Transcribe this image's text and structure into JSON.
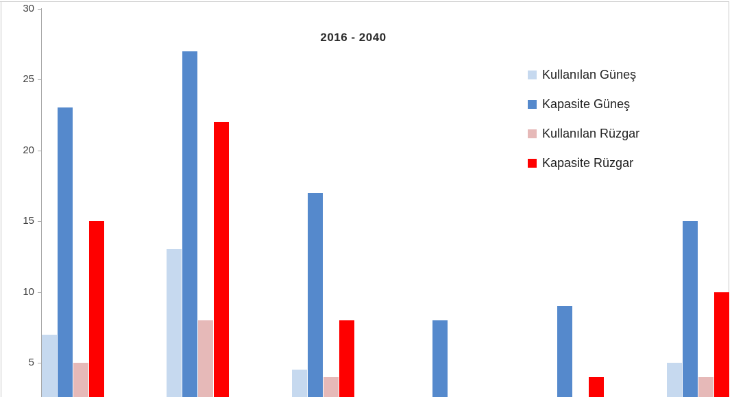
{
  "chart_data": {
    "type": "bar",
    "title": "2016 - 2040",
    "categories": [
      "",
      "",
      "",
      "",
      "",
      ""
    ],
    "series": [
      {
        "name": "Kullanılan Güneş",
        "color": "#c6d9ef",
        "values": [
          7,
          13,
          4.5,
          null,
          null,
          5
        ]
      },
      {
        "name": "Kapasite Güneş",
        "color": "#5589cc",
        "values": [
          23,
          27,
          17,
          8,
          9,
          15
        ]
      },
      {
        "name": "Kullanılan Rüzgar",
        "color": "#e6b9b8",
        "values": [
          5,
          8,
          4,
          null,
          null,
          4
        ]
      },
      {
        "name": "Kapasite Rüzgar",
        "color": "#fe0000",
        "values": [
          15,
          22,
          8,
          null,
          4,
          10
        ]
      }
    ],
    "xlabel": "",
    "ylabel": "",
    "ylim": [
      0,
      30
    ],
    "ytick_interval": 5,
    "yticks": [
      30,
      25,
      20,
      15,
      10,
      5
    ],
    "ytick_labels": [
      "30",
      "25",
      "20",
      "15",
      "10",
      "5"
    ],
    "grid": false,
    "legend_position": "right",
    "note": "x-axis and chart bottom cropped out of view; bars run past the bottom edge"
  },
  "colors": {
    "axis": "#a6a6a6",
    "frame_border": "#c6c6c6",
    "title_text": "#2b2b2b",
    "tick_text": "#3f3f3f",
    "legend_text": "#1f1f1f",
    "background": "#ffffff"
  }
}
